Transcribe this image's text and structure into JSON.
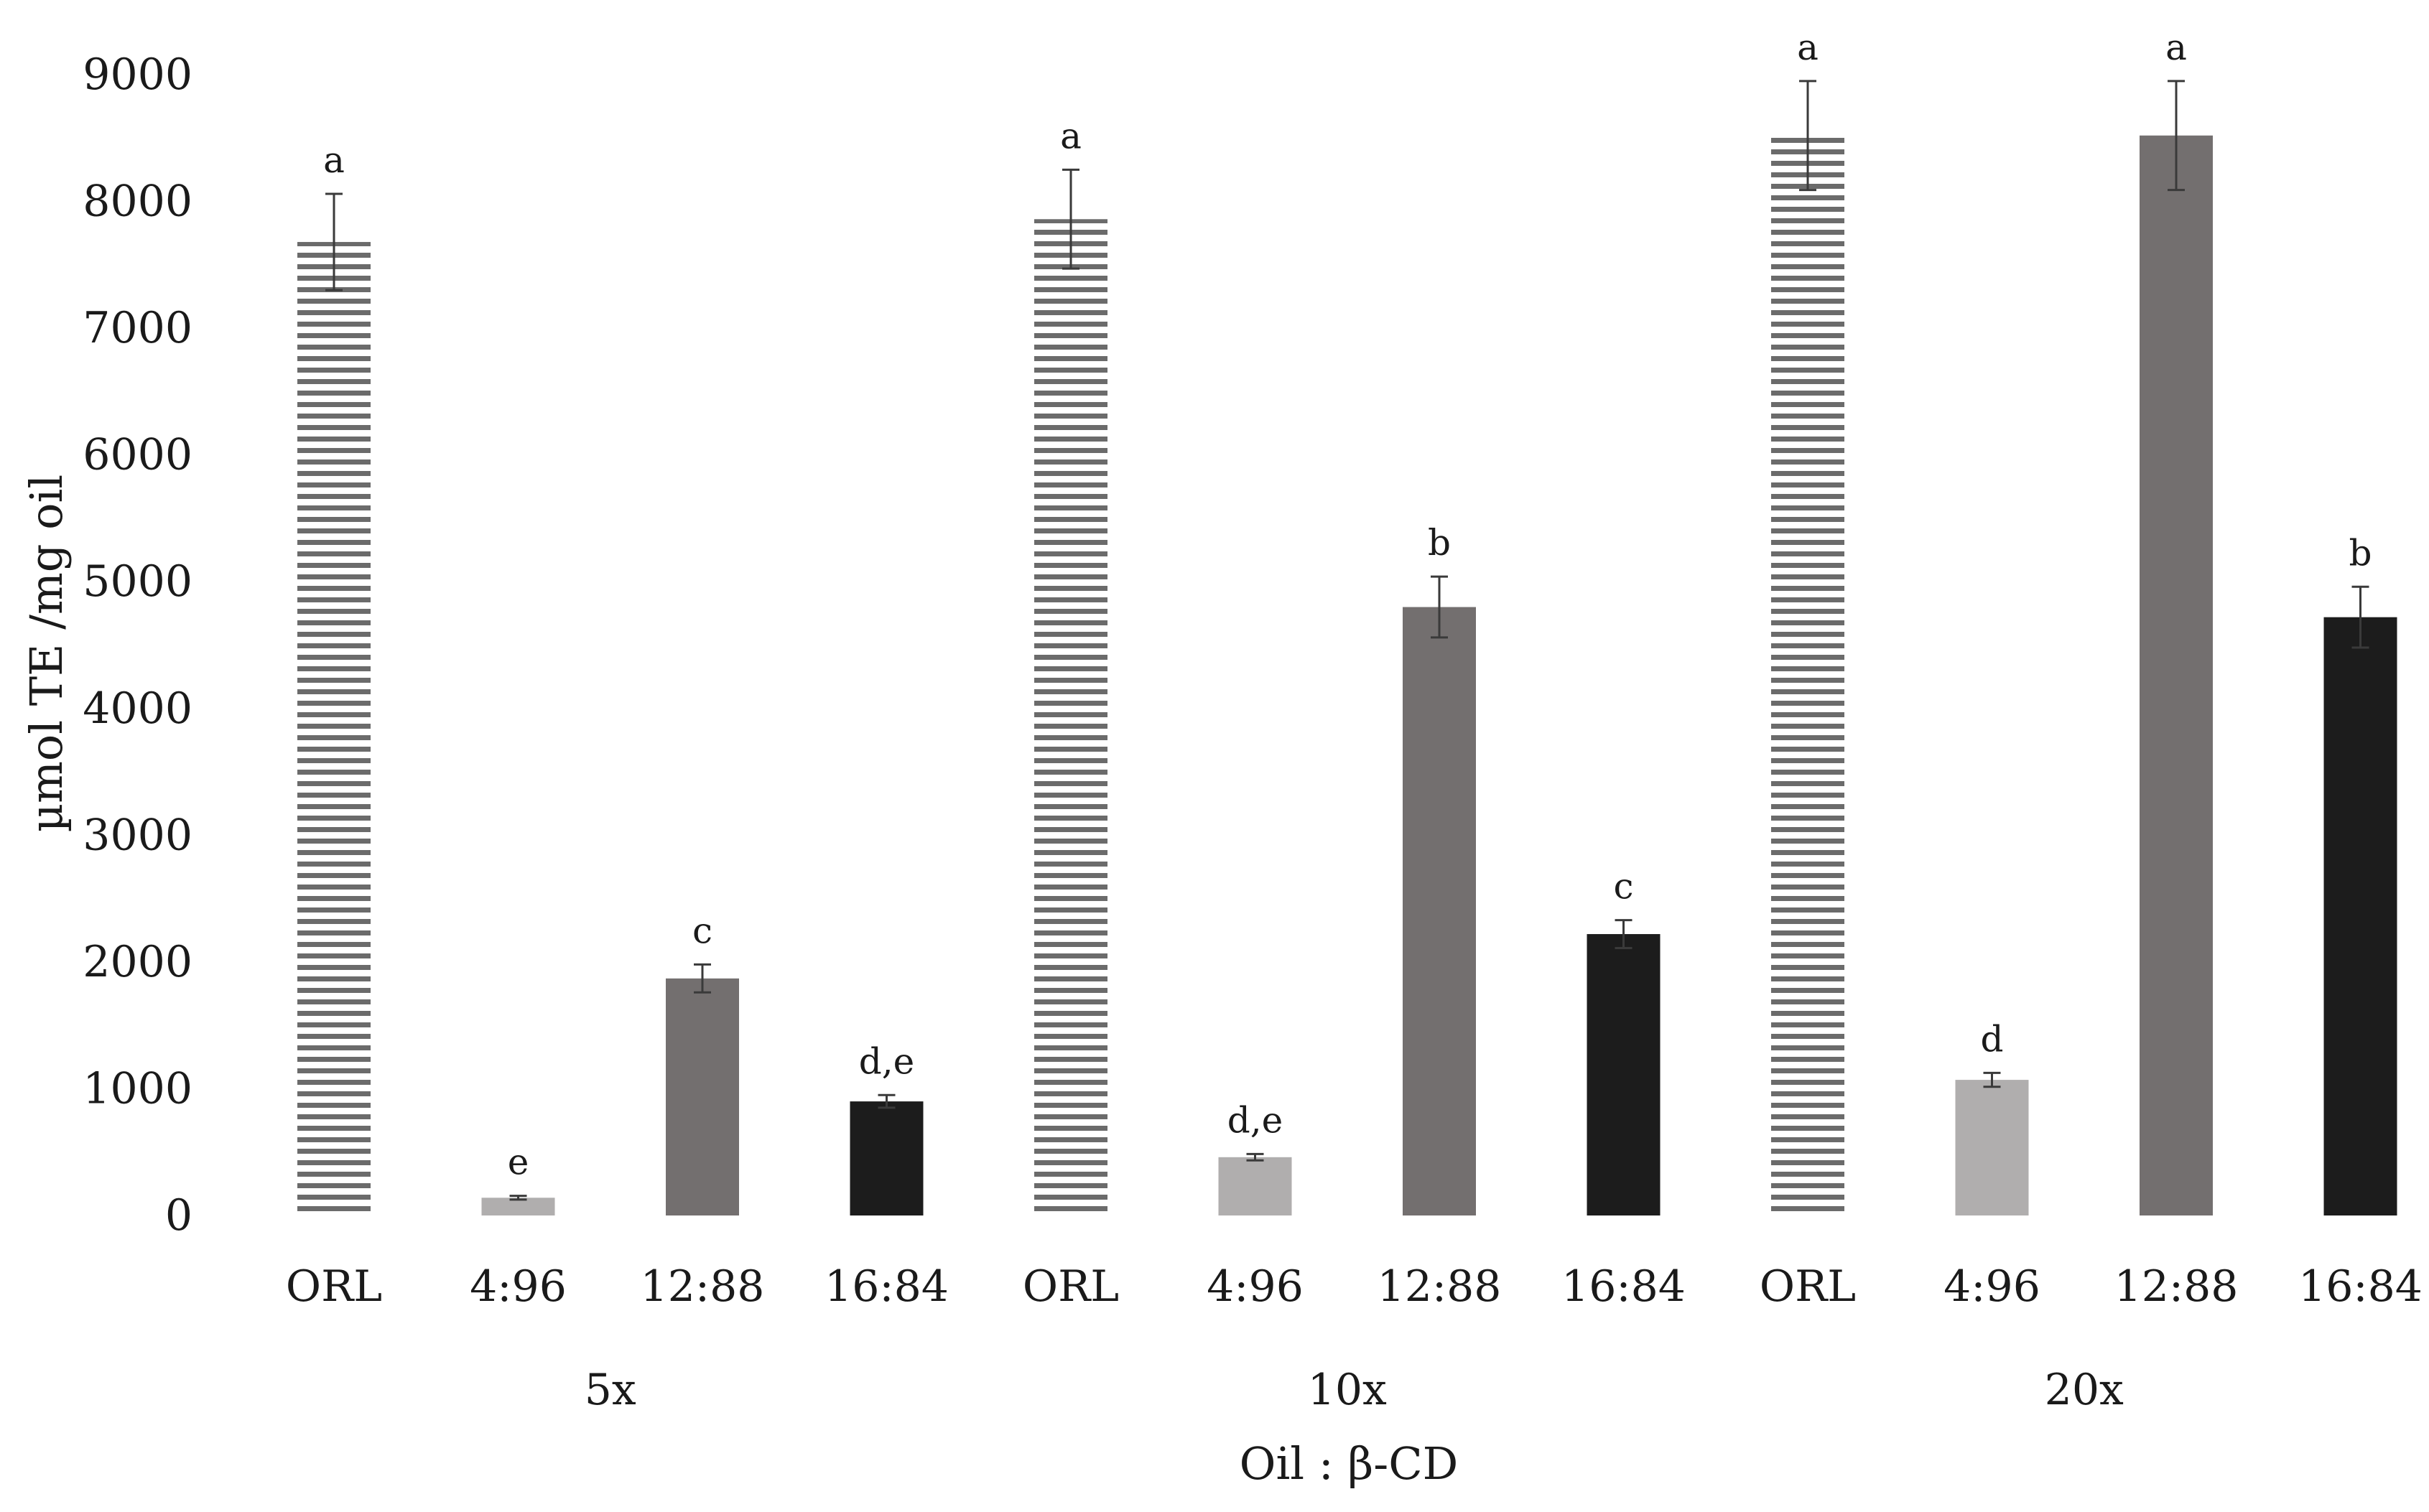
{
  "chart_data": {
    "type": "bar",
    "title": "",
    "ylabel": "µmol TE /mg oil",
    "xlabel": "Oil : β-CD",
    "ylim": [
      0,
      9000
    ],
    "yticks": [
      0,
      1000,
      2000,
      3000,
      4000,
      5000,
      6000,
      7000,
      8000,
      9000
    ],
    "grid": false,
    "legend": "none",
    "colors": {
      "ORL": "#6b6b6b",
      "4:96": "#b0aeae",
      "12:88": "#736f6f",
      "16:84": "#1c1c1c",
      "axis": "#3a3a3a"
    },
    "groups": [
      {
        "label": "5x",
        "bars": [
          {
            "category": "ORL",
            "value": 7680,
            "error": 380,
            "sig": "a",
            "pattern": "striped"
          },
          {
            "category": "4:96",
            "value": 140,
            "error": 15,
            "sig": "e",
            "pattern": "solid"
          },
          {
            "category": "12:88",
            "value": 1870,
            "error": 110,
            "sig": "c",
            "pattern": "solid"
          },
          {
            "category": "16:84",
            "value": 900,
            "error": 50,
            "sig": "d,e",
            "pattern": "solid"
          }
        ]
      },
      {
        "label": "10x",
        "bars": [
          {
            "category": "ORL",
            "value": 7860,
            "error": 390,
            "sig": "a",
            "pattern": "striped"
          },
          {
            "category": "4:96",
            "value": 460,
            "error": 25,
            "sig": "d,e",
            "pattern": "solid"
          },
          {
            "category": "12:88",
            "value": 4800,
            "error": 240,
            "sig": "b",
            "pattern": "solid"
          },
          {
            "category": "16:84",
            "value": 2220,
            "error": 110,
            "sig": "c",
            "pattern": "solid"
          }
        ]
      },
      {
        "label": "20x",
        "bars": [
          {
            "category": "ORL",
            "value": 8520,
            "error": 430,
            "sig": "a",
            "pattern": "striped"
          },
          {
            "category": "4:96",
            "value": 1070,
            "error": 55,
            "sig": "d",
            "pattern": "solid"
          },
          {
            "category": "12:88",
            "value": 8520,
            "error": 430,
            "sig": "a",
            "pattern": "solid"
          },
          {
            "category": "16:84",
            "value": 4720,
            "error": 240,
            "sig": "b",
            "pattern": "solid"
          }
        ]
      }
    ]
  }
}
